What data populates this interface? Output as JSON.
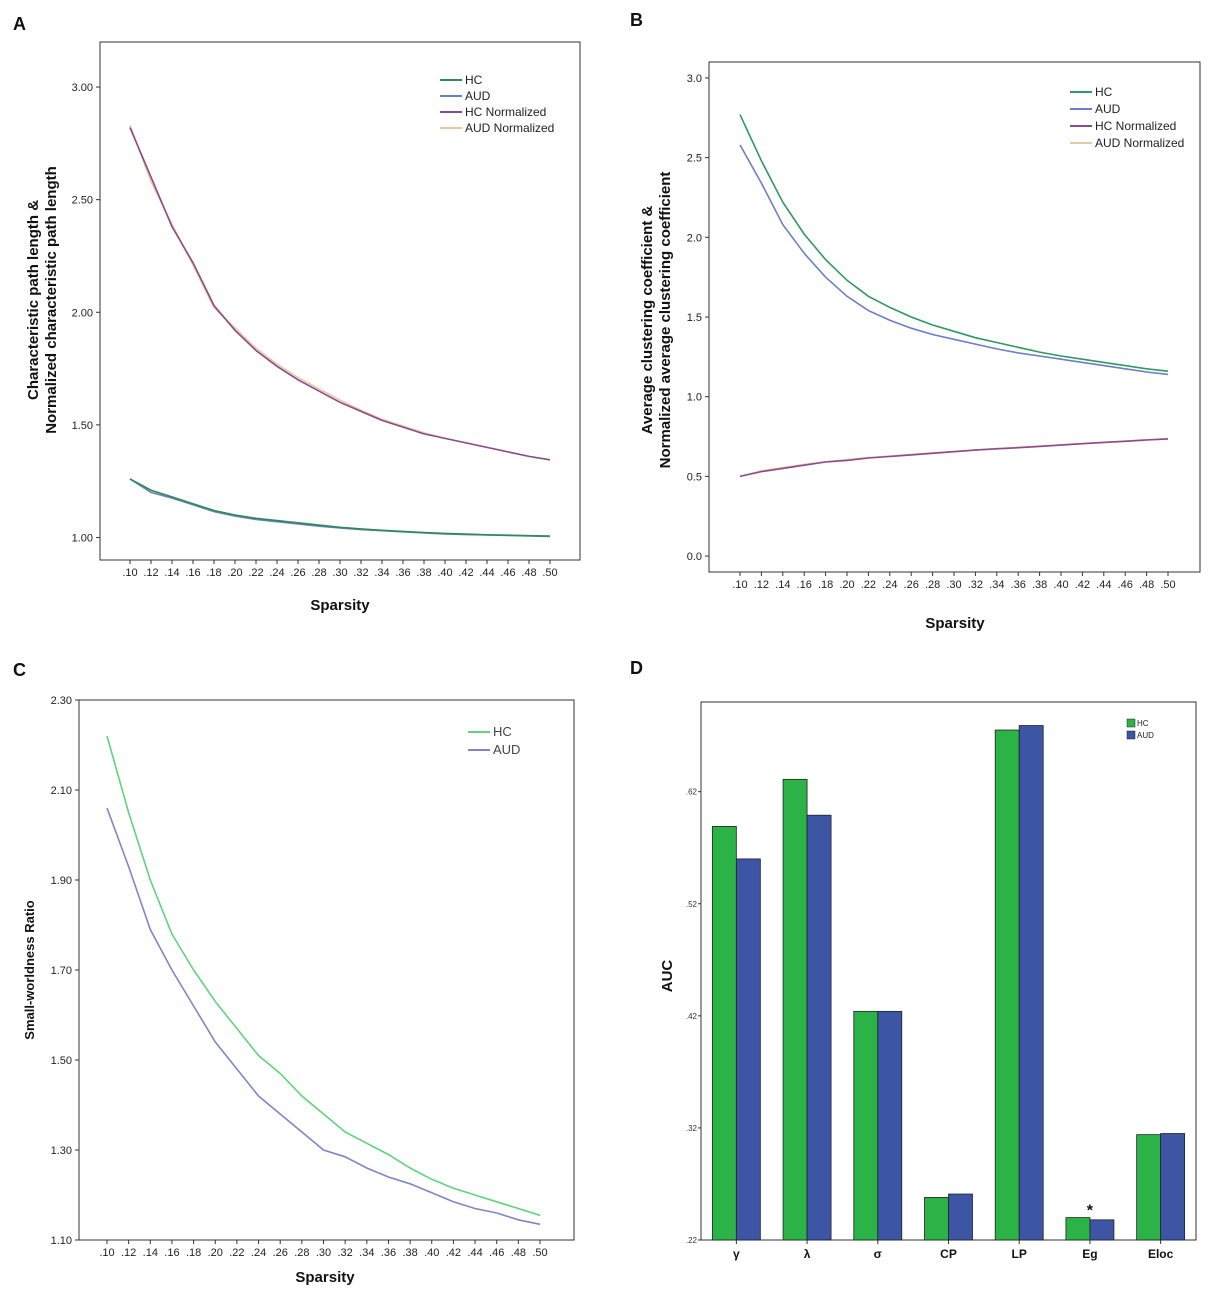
{
  "panels": {
    "A": {
      "letter": "A"
    },
    "B": {
      "letter": "B"
    },
    "C": {
      "letter": "C"
    },
    "D": {
      "letter": "D"
    }
  },
  "chart_data": [
    {
      "id": "A",
      "type": "line",
      "xlabel": "Sparsity",
      "ylabel_line1": "Characteristic path length &",
      "ylabel_line2": "Normalized characteristic path length",
      "ylim": [
        0.9,
        3.2
      ],
      "yticks": [
        "1.00",
        "1.50",
        "2.00",
        "2.50",
        "3.00"
      ],
      "ytick_values": [
        1.0,
        1.5,
        2.0,
        2.5,
        3.0
      ],
      "x": [
        0.1,
        0.12,
        0.14,
        0.16,
        0.18,
        0.2,
        0.22,
        0.24,
        0.26,
        0.28,
        0.3,
        0.32,
        0.34,
        0.36,
        0.38,
        0.4,
        0.42,
        0.44,
        0.46,
        0.48,
        0.5
      ],
      "xticks": [
        ".10",
        ".12",
        ".14",
        ".16",
        ".18",
        ".20",
        ".22",
        ".24",
        ".26",
        ".28",
        ".30",
        ".32",
        ".34",
        ".36",
        ".38",
        ".40",
        ".42",
        ".44",
        ".46",
        ".48",
        ".50"
      ],
      "series": [
        {
          "name": "HC",
          "color": "#2e8b57",
          "values": [
            1.26,
            1.21,
            1.18,
            1.15,
            1.12,
            1.1,
            1.085,
            1.075,
            1.065,
            1.055,
            1.045,
            1.038,
            1.032,
            1.027,
            1.022,
            1.018,
            1.015,
            1.012,
            1.01,
            1.008,
            1.006
          ]
        },
        {
          "name": "AUD",
          "color": "#6b7fc4",
          "values": [
            1.26,
            1.2,
            1.175,
            1.145,
            1.115,
            1.095,
            1.08,
            1.07,
            1.06,
            1.05,
            1.042,
            1.035,
            1.03,
            1.025,
            1.02,
            1.016,
            1.013,
            1.011,
            1.009,
            1.007,
            1.005
          ]
        },
        {
          "name": "HC Normalized",
          "color": "#8b4a8b",
          "values": [
            2.82,
            2.6,
            2.38,
            2.22,
            2.03,
            1.92,
            1.83,
            1.76,
            1.7,
            1.65,
            1.6,
            1.56,
            1.52,
            1.49,
            1.46,
            1.44,
            1.42,
            1.4,
            1.38,
            1.36,
            1.345
          ]
        },
        {
          "name": "AUD Normalized",
          "color": "#e8c9a0",
          "values": [
            2.83,
            2.58,
            2.39,
            2.21,
            2.02,
            1.93,
            1.84,
            1.77,
            1.71,
            1.66,
            1.61,
            1.565,
            1.525,
            1.495,
            1.465,
            1.44,
            1.42,
            1.4,
            1.38,
            1.36,
            1.345
          ]
        }
      ]
    },
    {
      "id": "B",
      "type": "line",
      "xlabel": "Sparsity",
      "ylabel_line1": "Average clustering coefficient &",
      "ylabel_line2": "Normalized average clustering coefficient",
      "ylim": [
        -0.1,
        3.1
      ],
      "yticks": [
        "0.0",
        "0.5",
        "1.0",
        "1.5",
        "2.0",
        "2.5",
        "3.0"
      ],
      "ytick_values": [
        0.0,
        0.5,
        1.0,
        1.5,
        2.0,
        2.5,
        3.0
      ],
      "x": [
        0.1,
        0.12,
        0.14,
        0.16,
        0.18,
        0.2,
        0.22,
        0.24,
        0.26,
        0.28,
        0.3,
        0.32,
        0.34,
        0.36,
        0.38,
        0.4,
        0.42,
        0.44,
        0.46,
        0.48,
        0.5
      ],
      "xticks": [
        ".10",
        ".12",
        ".14",
        ".16",
        ".18",
        ".20",
        ".22",
        ".24",
        ".26",
        ".28",
        ".30",
        ".32",
        ".34",
        ".36",
        ".38",
        ".40",
        ".42",
        ".44",
        ".46",
        ".48",
        ".50"
      ],
      "series": [
        {
          "name": "HC",
          "color": "#2e9a5e",
          "values": [
            2.77,
            2.48,
            2.22,
            2.02,
            1.86,
            1.73,
            1.63,
            1.56,
            1.5,
            1.45,
            1.41,
            1.37,
            1.34,
            1.31,
            1.28,
            1.255,
            1.235,
            1.215,
            1.195,
            1.175,
            1.16
          ]
        },
        {
          "name": "AUD",
          "color": "#6b7fc4",
          "values": [
            2.58,
            2.34,
            2.08,
            1.9,
            1.75,
            1.63,
            1.54,
            1.48,
            1.43,
            1.39,
            1.36,
            1.33,
            1.3,
            1.275,
            1.255,
            1.235,
            1.215,
            1.195,
            1.175,
            1.155,
            1.14
          ]
        },
        {
          "name": "HC Normalized",
          "color": "#8b4a8b",
          "values": [
            0.5,
            0.53,
            0.55,
            0.57,
            0.59,
            0.6,
            0.615,
            0.625,
            0.635,
            0.645,
            0.655,
            0.665,
            0.673,
            0.68,
            0.688,
            0.696,
            0.705,
            0.713,
            0.72,
            0.728,
            0.735
          ]
        },
        {
          "name": "AUD Normalized",
          "color": "#e8c9a0",
          "values": [
            0.5,
            0.535,
            0.555,
            0.575,
            0.592,
            0.605,
            0.618,
            0.628,
            0.638,
            0.648,
            0.657,
            0.666,
            0.675,
            0.682,
            0.69,
            0.698,
            0.706,
            0.714,
            0.722,
            0.73,
            0.737
          ]
        }
      ]
    },
    {
      "id": "C",
      "type": "line",
      "xlabel": "Sparsity",
      "ylabel": "Small-worldness Ratio",
      "ylim": [
        1.1,
        2.3
      ],
      "yticks": [
        "1.10",
        "1.30",
        "1.50",
        "1.70",
        "1.90",
        "2.10",
        "2.30"
      ],
      "ytick_values": [
        1.1,
        1.3,
        1.5,
        1.7,
        1.9,
        2.1,
        2.3
      ],
      "x": [
        0.1,
        0.12,
        0.14,
        0.16,
        0.18,
        0.2,
        0.22,
        0.24,
        0.26,
        0.28,
        0.3,
        0.32,
        0.34,
        0.36,
        0.38,
        0.4,
        0.42,
        0.44,
        0.46,
        0.48,
        0.5
      ],
      "xticks": [
        ".10",
        ".12",
        ".14",
        ".16",
        ".18",
        ".20",
        ".22",
        ".24",
        ".26",
        ".28",
        ".30",
        ".32",
        ".34",
        ".36",
        ".38",
        ".40",
        ".42",
        ".44",
        ".46",
        ".48",
        ".50"
      ],
      "series": [
        {
          "name": "HC",
          "color": "#5fd47a",
          "values": [
            2.22,
            2.05,
            1.9,
            1.78,
            1.7,
            1.63,
            1.57,
            1.51,
            1.47,
            1.42,
            1.38,
            1.34,
            1.315,
            1.29,
            1.26,
            1.235,
            1.215,
            1.2,
            1.185,
            1.17,
            1.155
          ]
        },
        {
          "name": "AUD",
          "color": "#7e86c8",
          "values": [
            2.06,
            1.93,
            1.79,
            1.7,
            1.62,
            1.54,
            1.48,
            1.42,
            1.38,
            1.34,
            1.3,
            1.285,
            1.26,
            1.24,
            1.225,
            1.205,
            1.185,
            1.17,
            1.16,
            1.145,
            1.135
          ]
        }
      ]
    },
    {
      "id": "D",
      "type": "bar",
      "ylabel": "AUC",
      "ylim": [
        0.22,
        0.7
      ],
      "yticks": [
        ".22",
        ".32",
        ".42",
        ".52",
        ".62"
      ],
      "ytick_values": [
        0.22,
        0.32,
        0.42,
        0.52,
        0.62
      ],
      "categories": [
        "γ",
        "λ",
        "σ",
        "CP",
        "LP",
        "Eg",
        "Eloc"
      ],
      "series": [
        {
          "name": "HC",
          "color": "#2bb347",
          "values": [
            0.589,
            0.631,
            0.424,
            0.258,
            0.675,
            0.24,
            0.314
          ]
        },
        {
          "name": "AUD",
          "color": "#3c55a5",
          "values": [
            0.56,
            0.599,
            0.424,
            0.261,
            0.679,
            0.238,
            0.315
          ]
        }
      ],
      "annotations": [
        {
          "category": "Eg",
          "text": "*"
        }
      ]
    }
  ]
}
